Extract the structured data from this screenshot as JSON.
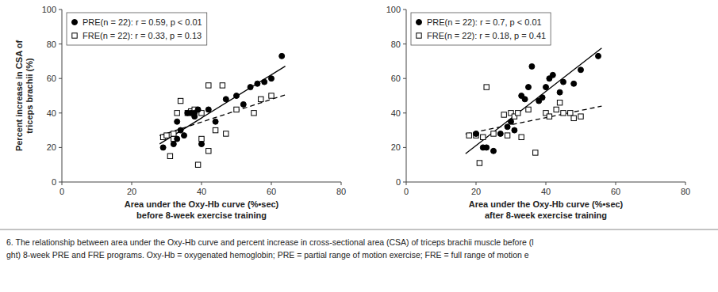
{
  "chart_data": [
    {
      "type": "scatter",
      "xlabel": "Area under the Oxy-Hb curve (%•sec)\nbefore 8-week exercise training",
      "ylabel": "Percent increase in CSA of\ntriceps brachii (%)",
      "xlim": [
        0,
        80
      ],
      "ylim": [
        0,
        100
      ],
      "xticks": [
        0,
        20,
        40,
        60,
        80
      ],
      "yticks": [
        0,
        20,
        40,
        60,
        80,
        100
      ],
      "grid": false,
      "legend": "upper left",
      "series": [
        {
          "name": "PRE(n = 22): r = 0.59, p < 0.01",
          "marker": "circle",
          "color": "#000000",
          "x": [
            29,
            32,
            33,
            33,
            34,
            35,
            36,
            37,
            38,
            38,
            39,
            40,
            42,
            44,
            47,
            50,
            52,
            54,
            56,
            58,
            60,
            63
          ],
          "values": [
            20,
            22,
            25,
            35,
            30,
            27,
            40,
            40,
            40,
            38,
            42,
            22,
            42,
            35,
            48,
            50,
            45,
            55,
            57,
            58,
            60,
            73
          ]
        },
        {
          "name": "FRE(n = 22): r = 0.33, p = 0.13",
          "marker": "open-square",
          "color": "#000000",
          "x": [
            29,
            30,
            31,
            32,
            32,
            33,
            34,
            36,
            37,
            38,
            39,
            40,
            40,
            42,
            42,
            44,
            46,
            47,
            50,
            55,
            57,
            60
          ],
          "values": [
            26,
            27,
            15,
            25,
            28,
            40,
            47,
            40,
            41,
            42,
            10,
            25,
            40,
            18,
            56,
            30,
            56,
            28,
            42,
            40,
            48,
            50
          ]
        },
        {
          "type": "line",
          "line_style": "solid",
          "color": "#000000",
          "x": [
            28,
            64
          ],
          "values": [
            22.092,
            67.143
          ]
        },
        {
          "type": "line",
          "line_style": "dashed",
          "color": "#000000",
          "x": [
            28,
            64
          ],
          "values": [
            26.884,
            50.524
          ]
        }
      ]
    },
    {
      "type": "scatter",
      "xlabel": "Area under the Oxy-Hb curve (%•sec)\nafter 8-week exercise training",
      "xlim": [
        0,
        80
      ],
      "ylim": [
        0,
        100
      ],
      "xticks": [
        0,
        20,
        40,
        60,
        80
      ],
      "yticks": [
        0,
        20,
        40,
        60,
        80,
        100
      ],
      "grid": false,
      "legend": "upper left",
      "series": [
        {
          "name": "PRE(n = 22): r = 0.7, p < 0.01",
          "marker": "circle",
          "color": "#000000",
          "x": [
            20,
            22,
            23,
            25,
            27,
            29,
            30,
            31,
            33,
            34,
            35,
            36,
            38,
            39,
            40,
            41,
            42,
            44,
            45,
            48,
            50,
            55
          ],
          "values": [
            28,
            20,
            20,
            18,
            28,
            32,
            35,
            30,
            50,
            48,
            55,
            67,
            47,
            49,
            55,
            60,
            62,
            52,
            58,
            57,
            65,
            73
          ]
        },
        {
          "name": "FRE(n = 22): r = 0.18, p = 0.41",
          "marker": "open-square",
          "color": "#000000",
          "x": [
            18,
            20,
            21,
            22,
            23,
            25,
            28,
            29,
            30,
            31,
            32,
            33,
            35,
            37,
            40,
            41,
            43,
            44,
            45,
            47,
            48,
            50
          ],
          "values": [
            27,
            27,
            11,
            26,
            55,
            28,
            39,
            27,
            40,
            38,
            40,
            26,
            42,
            17,
            40,
            38,
            42,
            46,
            40,
            40,
            37,
            38
          ]
        },
        {
          "type": "line",
          "line_style": "solid",
          "color": "#000000",
          "x": [
            17,
            56
          ],
          "values": [
            16.353,
            77.661
          ]
        },
        {
          "type": "line",
          "line_style": "dashed",
          "color": "#000000",
          "x": [
            17,
            56
          ],
          "values": [
            27.79,
            43.965
          ]
        }
      ]
    }
  ],
  "caption": [
    "6.  The relationship between area under the Oxy-Hb curve and percent increase in cross-sectional area (CSA) of triceps brachii muscle before (l",
    "ght) 8-week PRE and FRE programs. Oxy-Hb = oxygenated hemoglobin; PRE = partial range of motion exercise; FRE = full range of motion e"
  ]
}
